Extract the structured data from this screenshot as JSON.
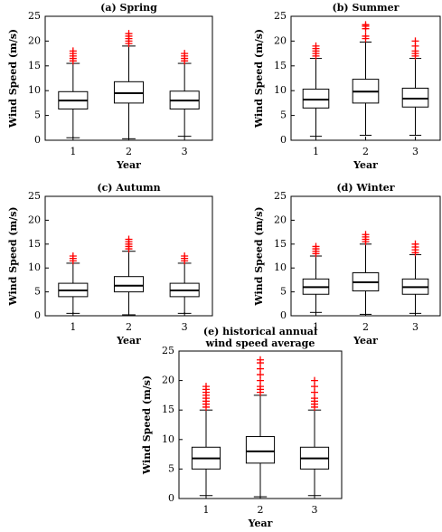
{
  "chart_data": [
    {
      "type": "box",
      "title": "(a) Spring",
      "xlabel": "Year",
      "ylabel": "Wind Speed (m/s)",
      "categories": [
        "1",
        "2",
        "3"
      ],
      "ylim": [
        0,
        25
      ],
      "yticks": [
        0,
        5,
        10,
        15,
        20,
        25
      ],
      "color": "#000000",
      "outlier_color": "#ff0000",
      "boxes": [
        {
          "whisker_low": 0.5,
          "q1": 6.3,
          "median": 8,
          "q3": 9.8,
          "whisker_high": 15.5,
          "outliers": [
            16,
            16.5,
            17,
            17.5,
            18
          ]
        },
        {
          "whisker_low": 0.3,
          "q1": 7.5,
          "median": 9.5,
          "q3": 11.8,
          "whisker_high": 19,
          "outliers": [
            19.5,
            20,
            20.5,
            21,
            21.5
          ]
        },
        {
          "whisker_low": 0.8,
          "q1": 6.3,
          "median": 8,
          "q3": 9.9,
          "whisker_high": 15.5,
          "outliers": [
            16,
            16.5,
            17,
            17.5
          ]
        }
      ]
    },
    {
      "type": "box",
      "title": "(b) Summer",
      "xlabel": "Year",
      "ylabel": "Wind Speed (m/s)",
      "categories": [
        "1",
        "2",
        "3"
      ],
      "ylim": [
        0,
        25
      ],
      "yticks": [
        0,
        5,
        10,
        15,
        20,
        25
      ],
      "color": "#000000",
      "outlier_color": "#ff0000",
      "boxes": [
        {
          "whisker_low": 0.8,
          "q1": 6.5,
          "median": 8.2,
          "q3": 10.3,
          "whisker_high": 16.5,
          "outliers": [
            17,
            17.5,
            18,
            18.5,
            19
          ]
        },
        {
          "whisker_low": 1,
          "q1": 7.5,
          "median": 9.8,
          "q3": 12.3,
          "whisker_high": 19.8,
          "outliers": [
            20.5,
            21,
            22.5,
            23,
            23.3
          ]
        },
        {
          "whisker_low": 1,
          "q1": 6.7,
          "median": 8.4,
          "q3": 10.5,
          "whisker_high": 16.5,
          "outliers": [
            17,
            17.5,
            18,
            19,
            20
          ]
        }
      ]
    },
    {
      "type": "box",
      "title": "(c) Autumn",
      "xlabel": "Year",
      "ylabel": "Wind Speed (m/s)",
      "categories": [
        "1",
        "2",
        "3"
      ],
      "ylim": [
        0,
        25
      ],
      "yticks": [
        0,
        5,
        10,
        15,
        20,
        25
      ],
      "color": "#000000",
      "outlier_color": "#ff0000",
      "boxes": [
        {
          "whisker_low": 0.5,
          "q1": 4,
          "median": 5.3,
          "q3": 6.8,
          "whisker_high": 11,
          "outliers": [
            11.5,
            12,
            12.5
          ]
        },
        {
          "whisker_low": 0.2,
          "q1": 5,
          "median": 6.3,
          "q3": 8.2,
          "whisker_high": 13.5,
          "outliers": [
            14,
            14.5,
            15,
            15.5,
            16
          ]
        },
        {
          "whisker_low": 0.5,
          "q1": 4,
          "median": 5.3,
          "q3": 6.8,
          "whisker_high": 11,
          "outliers": [
            11.5,
            12,
            12.5
          ]
        }
      ]
    },
    {
      "type": "box",
      "title": "(d) Winter",
      "xlabel": "Year",
      "ylabel": "Wind Speed (m/s)",
      "categories": [
        "1",
        "2",
        "3"
      ],
      "ylim": [
        0,
        25
      ],
      "yticks": [
        0,
        5,
        10,
        15,
        20,
        25
      ],
      "color": "#000000",
      "outlier_color": "#ff0000",
      "boxes": [
        {
          "whisker_low": 0.7,
          "q1": 4.5,
          "median": 6,
          "q3": 7.7,
          "whisker_high": 12.5,
          "outliers": [
            13,
            13.5,
            14,
            14.5
          ]
        },
        {
          "whisker_low": 0.3,
          "q1": 5.2,
          "median": 7,
          "q3": 9,
          "whisker_high": 15,
          "outliers": [
            15.5,
            16,
            16.5,
            17
          ]
        },
        {
          "whisker_low": 0.5,
          "q1": 4.5,
          "median": 6,
          "q3": 7.7,
          "whisker_high": 12.8,
          "outliers": [
            13.2,
            13.8,
            14.4,
            15
          ]
        }
      ]
    },
    {
      "type": "box",
      "title": [
        "(e) historical annual",
        "wind speed average"
      ],
      "xlabel": "Year",
      "ylabel": "Wind Speed (m/s)",
      "categories": [
        "1",
        "2",
        "3"
      ],
      "ylim": [
        0,
        25
      ],
      "yticks": [
        0,
        5,
        10,
        15,
        20,
        25
      ],
      "color": "#000000",
      "outlier_color": "#ff0000",
      "boxes": [
        {
          "whisker_low": 0.5,
          "q1": 5,
          "median": 6.8,
          "q3": 8.7,
          "whisker_high": 15,
          "outliers": [
            15.5,
            16,
            16.5,
            17,
            17.5,
            18,
            18.5,
            19
          ]
        },
        {
          "whisker_low": 0.3,
          "q1": 6,
          "median": 8,
          "q3": 10.5,
          "whisker_high": 17.5,
          "outliers": [
            18,
            18.5,
            19,
            20,
            21,
            22,
            23,
            23.5
          ]
        },
        {
          "whisker_low": 0.5,
          "q1": 5,
          "median": 6.8,
          "q3": 8.7,
          "whisker_high": 15,
          "outliers": [
            15.5,
            16,
            16.5,
            17,
            18,
            19,
            20
          ]
        }
      ]
    }
  ]
}
